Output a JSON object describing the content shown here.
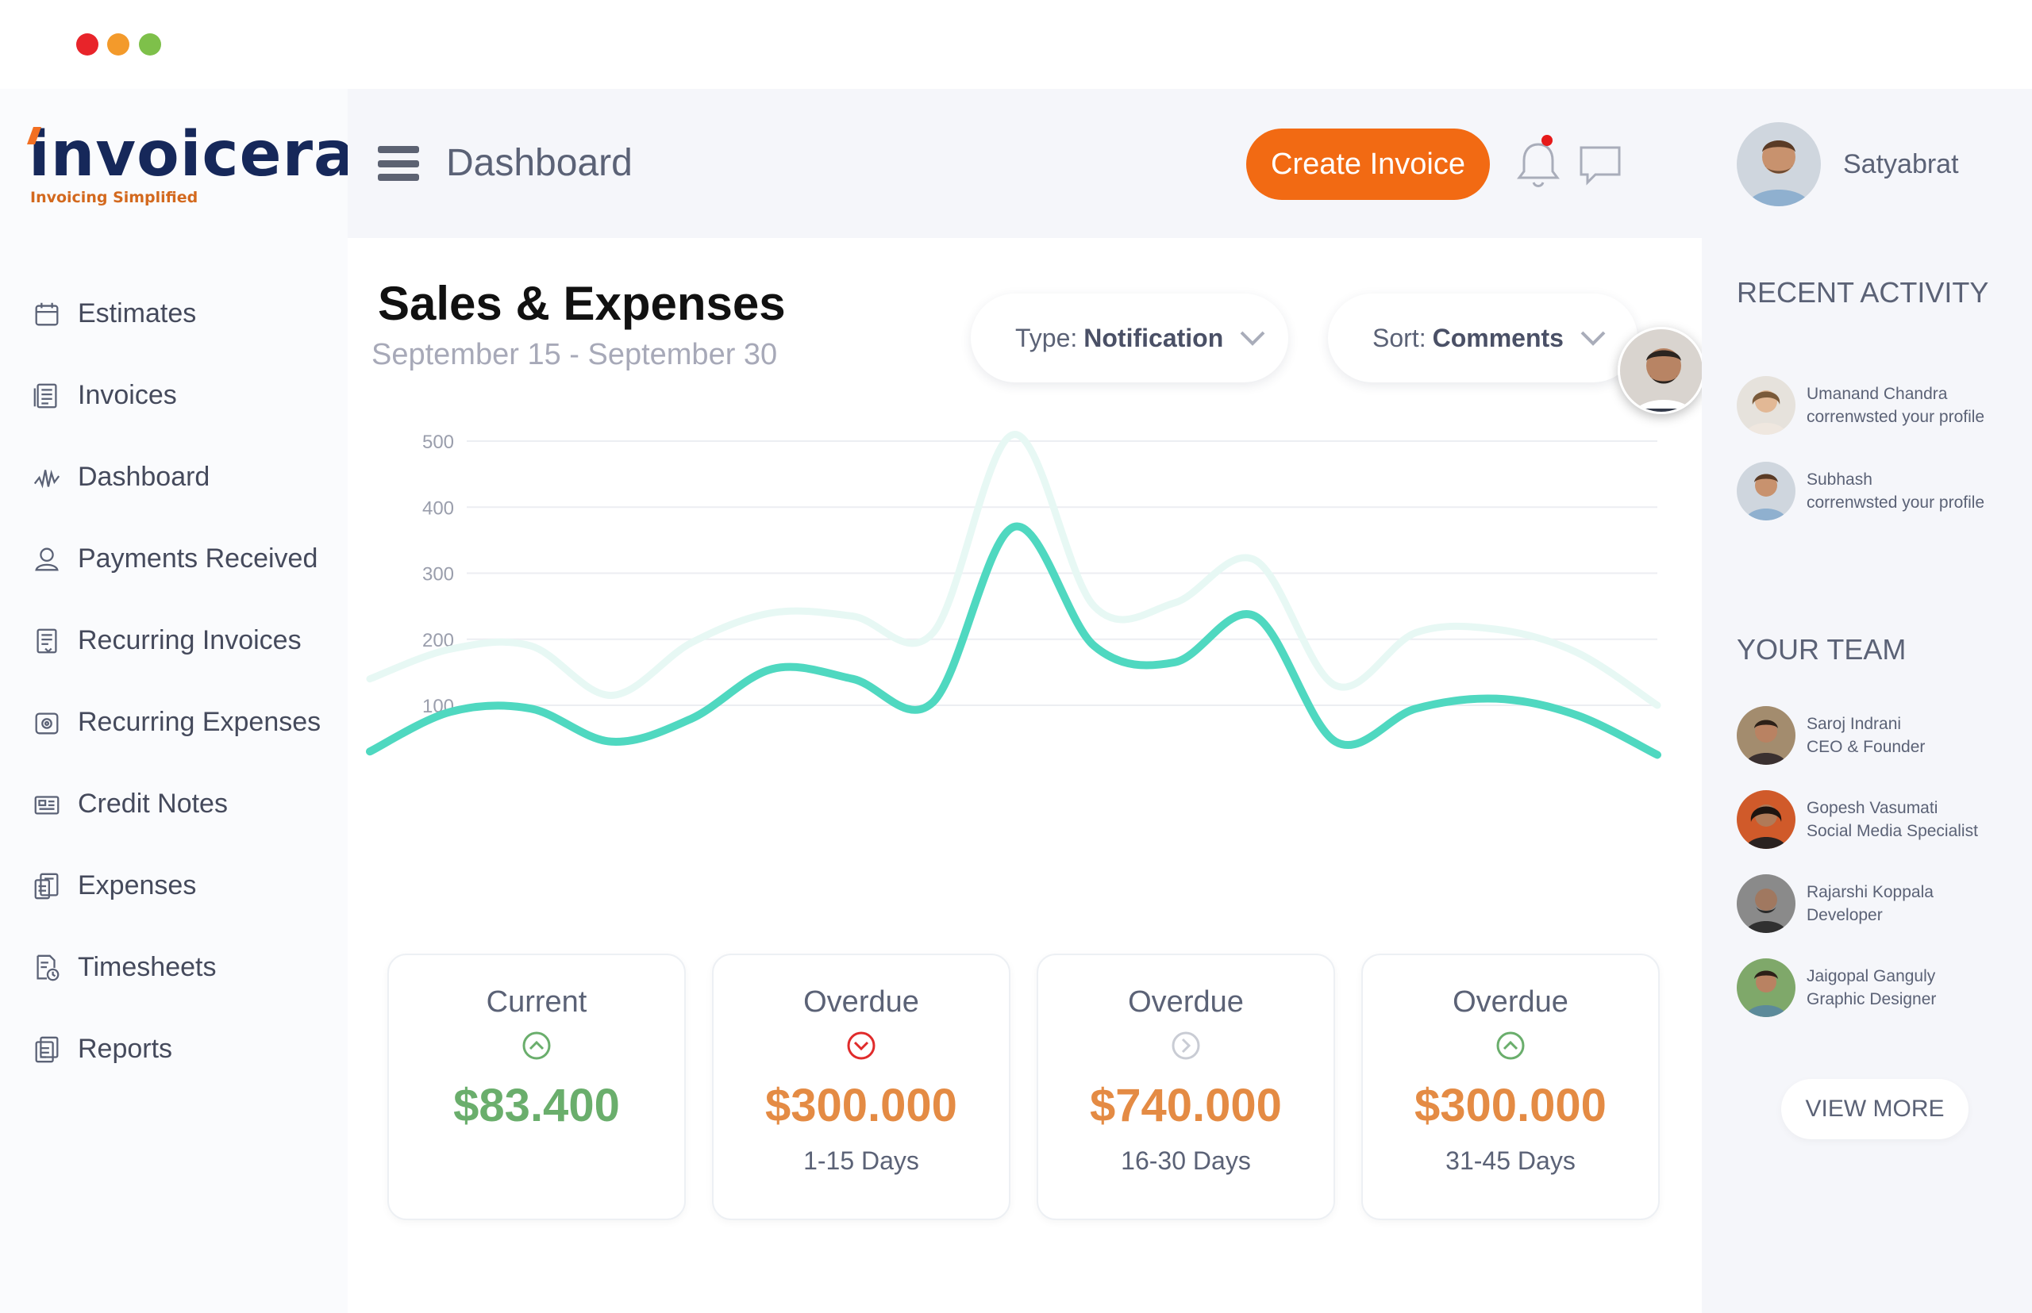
{
  "brand": {
    "name": "invoicera",
    "tagline": "Invoicing Simplified",
    "primary_color": "#16285a",
    "accent_color": "#f26a13"
  },
  "sidebar": {
    "items": [
      {
        "label": "Estimates",
        "icon": "calendar-icon"
      },
      {
        "label": "Invoices",
        "icon": "invoice-icon"
      },
      {
        "label": "Dashboard",
        "icon": "pulse-icon"
      },
      {
        "label": "Payments Received",
        "icon": "user-icon"
      },
      {
        "label": "Recurring Invoices",
        "icon": "recurring-invoice-icon"
      },
      {
        "label": "Recurring Expenses",
        "icon": "recurring-expense-icon"
      },
      {
        "label": "Credit Notes",
        "icon": "credit-note-icon"
      },
      {
        "label": "Expenses",
        "icon": "expense-icon"
      },
      {
        "label": "Timesheets",
        "icon": "timesheet-icon"
      },
      {
        "label": "Reports",
        "icon": "report-icon"
      }
    ]
  },
  "header": {
    "title": "Dashboard",
    "create_label": "Create Invoice",
    "notification_color": "#e61a1a"
  },
  "main": {
    "title": "Sales & Expenses",
    "subtitle": "September 15 - September 30",
    "type_filter": {
      "prefix": "Type:",
      "value": "Notification"
    },
    "sort_filter": {
      "prefix": "Sort:",
      "value": "Comments"
    }
  },
  "chart_data": {
    "type": "line",
    "y_ticks": [
      "500",
      "400",
      "300",
      "200",
      "100"
    ],
    "ylim": [
      0,
      500
    ],
    "grid": true,
    "series": [
      {
        "color": "#4fd8c0",
        "values": [
          30,
          90,
          95,
          45,
          80,
          155,
          140,
          105,
          370,
          190,
          165,
          235,
          45,
          95,
          110,
          85,
          25
        ]
      },
      {
        "color": "#e7f8f4",
        "values": [
          140,
          185,
          190,
          115,
          195,
          240,
          235,
          210,
          510,
          250,
          255,
          320,
          130,
          210,
          215,
          180,
          100
        ]
      }
    ]
  },
  "cards": [
    {
      "title": "Current",
      "amount": "$83.400",
      "range": "",
      "status": "up",
      "amount_color": "#6aae6c",
      "icon_color": "#6aae6c"
    },
    {
      "title": "Overdue",
      "amount": "$300.000",
      "range": "1-15 Days",
      "status": "down",
      "amount_color": "#e48b44",
      "icon_color": "#e02b2b"
    },
    {
      "title": "Overdue",
      "amount": "$740.000",
      "range": "16-30 Days",
      "status": "right",
      "amount_color": "#e48b44",
      "icon_color": "#c9ccd4"
    },
    {
      "title": "Overdue",
      "amount": "$300.000",
      "range": "31-45 Days",
      "status": "up",
      "amount_color": "#e48b44",
      "icon_color": "#6aae6c"
    }
  ],
  "user": {
    "name": "Satyabrat"
  },
  "recent_activity": {
    "heading": "RECENT ACTIVITY",
    "items": [
      {
        "name": "Umanand Chandra",
        "action": "correnwsted your profile"
      },
      {
        "name": "Subhash",
        "action": "correnwsted your profile"
      }
    ]
  },
  "team": {
    "heading": "YOUR TEAM",
    "members": [
      {
        "name": "Saroj Indrani",
        "role": "CEO & Founder"
      },
      {
        "name": "Gopesh Vasumati",
        "role": "Social Media Specialist"
      },
      {
        "name": "Rajarshi Koppala",
        "role": "Developer"
      },
      {
        "name": "Jaigopal Ganguly",
        "role": "Graphic Designer"
      }
    ],
    "view_more_label": "VIEW MORE"
  }
}
